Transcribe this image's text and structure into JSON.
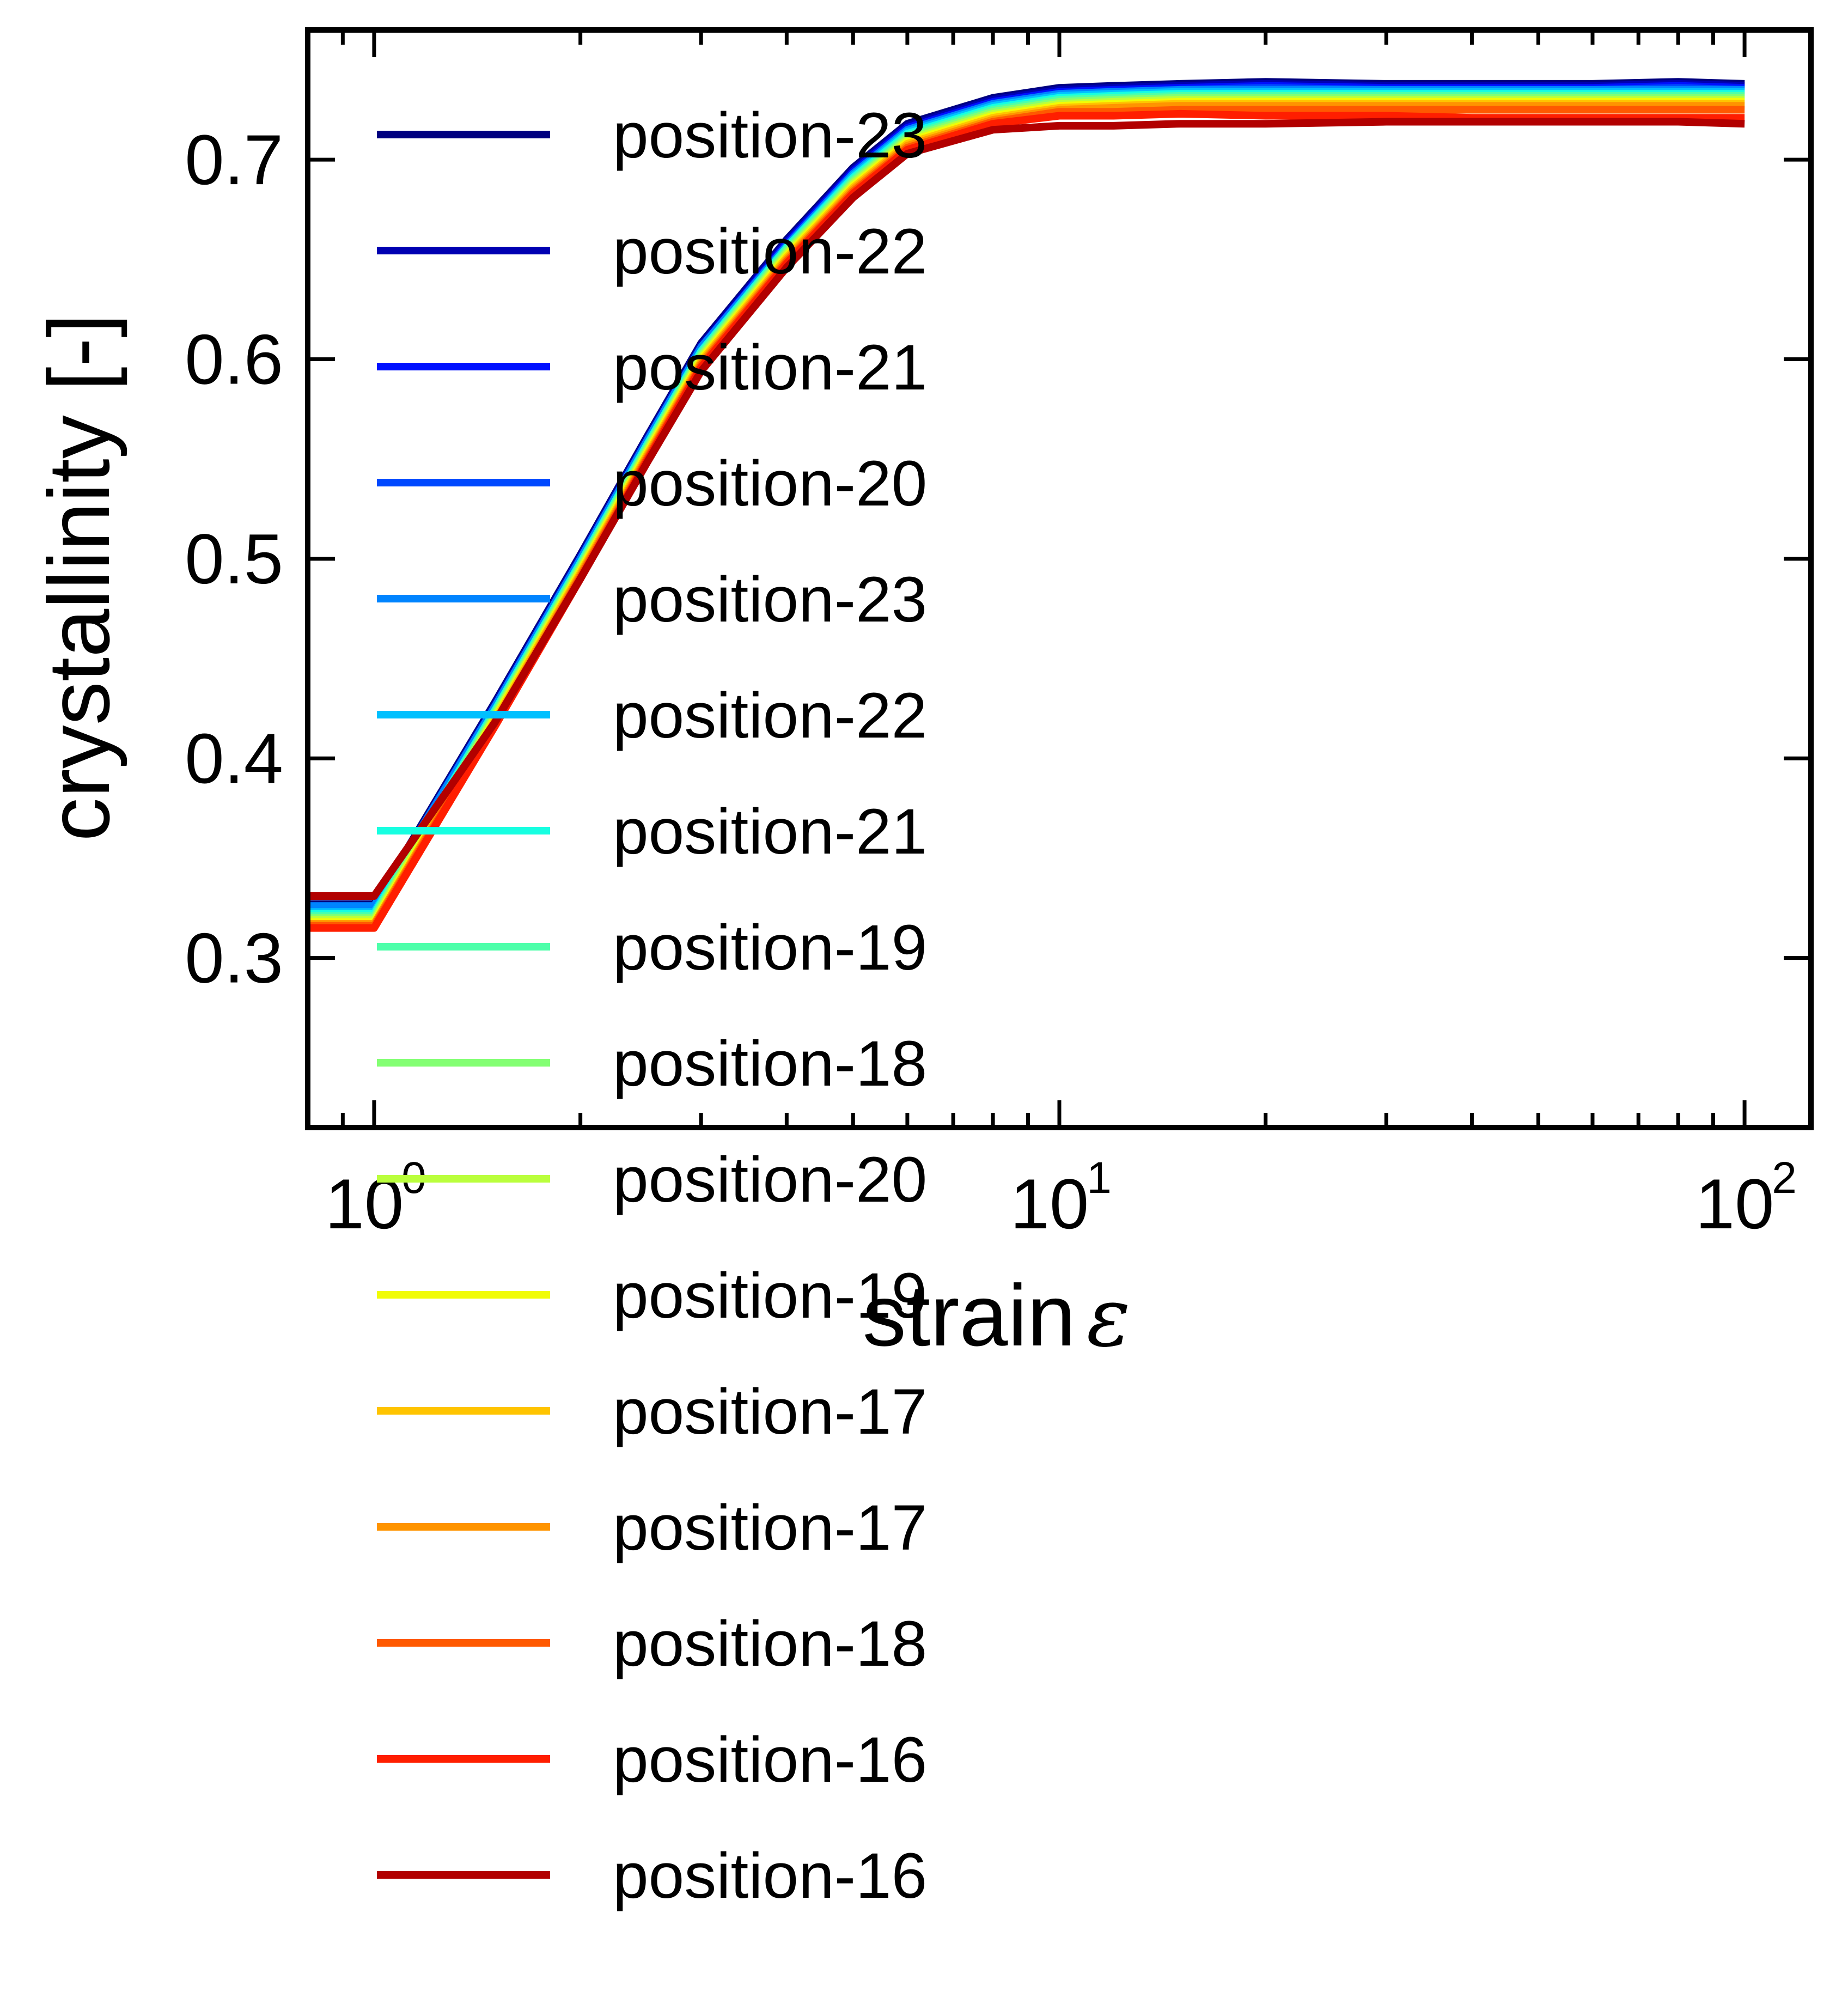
{
  "chart_data": {
    "type": "line",
    "xlabel": "strain",
    "xlabel_symbol": "ε",
    "ylabel": "crystallinity [-]",
    "xscale": "log",
    "xlim": [
      0.8,
      125
    ],
    "ylim": [
      0.215,
      0.765
    ],
    "x_ticks": [
      {
        "value": 1,
        "base": "10",
        "exp": "0"
      },
      {
        "value": 10,
        "base": "10",
        "exp": "1"
      },
      {
        "value": 100,
        "base": "10",
        "exp": "2"
      }
    ],
    "y_ticks": [
      {
        "value": 0.3,
        "label": "0.3"
      },
      {
        "value": 0.4,
        "label": "0.4"
      },
      {
        "value": 0.5,
        "label": "0.5"
      },
      {
        "value": 0.6,
        "label": "0.6"
      },
      {
        "value": 0.7,
        "label": "0.7"
      }
    ],
    "grid": false,
    "legend_position": "upper-left, extending below plot",
    "x": [
      0.8,
      1,
      1.5,
      2,
      2.5,
      3,
      4,
      5,
      6,
      8,
      10,
      12,
      15,
      20,
      30,
      40,
      60,
      80,
      100
    ],
    "series": [
      {
        "name": "position-23",
        "color": "#00007f",
        "values": [
          0.327,
          0.327,
          0.428,
          0.502,
          0.561,
          0.608,
          0.66,
          0.696,
          0.718,
          0.731,
          0.736,
          0.737,
          0.738,
          0.739,
          0.738,
          0.738,
          0.738,
          0.739,
          0.738
        ]
      },
      {
        "name": "position-22",
        "color": "#0000b2",
        "values": [
          0.326,
          0.326,
          0.427,
          0.501,
          0.56,
          0.607,
          0.659,
          0.695,
          0.717,
          0.73,
          0.735,
          0.736,
          0.737,
          0.738,
          0.737,
          0.737,
          0.737,
          0.738,
          0.737
        ]
      },
      {
        "name": "position-21",
        "color": "#0010ff",
        "values": [
          0.325,
          0.325,
          0.426,
          0.5,
          0.559,
          0.606,
          0.658,
          0.694,
          0.716,
          0.729,
          0.734,
          0.735,
          0.736,
          0.737,
          0.736,
          0.736,
          0.736,
          0.737,
          0.736
        ]
      },
      {
        "name": "position-20",
        "color": "#0048ff",
        "values": [
          0.324,
          0.324,
          0.425,
          0.499,
          0.558,
          0.605,
          0.657,
          0.693,
          0.715,
          0.728,
          0.733,
          0.734,
          0.735,
          0.736,
          0.735,
          0.735,
          0.735,
          0.736,
          0.735
        ]
      },
      {
        "name": "position-23",
        "color": "#0084ff",
        "values": [
          0.326,
          0.326,
          0.426,
          0.5,
          0.559,
          0.606,
          0.657,
          0.693,
          0.715,
          0.728,
          0.733,
          0.734,
          0.735,
          0.735,
          0.735,
          0.735,
          0.735,
          0.735,
          0.735
        ]
      },
      {
        "name": "position-22",
        "color": "#00c0ff",
        "values": [
          0.323,
          0.323,
          0.424,
          0.498,
          0.557,
          0.604,
          0.656,
          0.692,
          0.714,
          0.727,
          0.732,
          0.733,
          0.734,
          0.734,
          0.734,
          0.734,
          0.734,
          0.734,
          0.734
        ]
      },
      {
        "name": "position-21",
        "color": "#16ffe1",
        "values": [
          0.322,
          0.322,
          0.424,
          0.498,
          0.557,
          0.604,
          0.656,
          0.691,
          0.713,
          0.726,
          0.731,
          0.732,
          0.733,
          0.733,
          0.733,
          0.733,
          0.733,
          0.733,
          0.733
        ]
      },
      {
        "name": "position-19",
        "color": "#4dffaa",
        "values": [
          0.321,
          0.321,
          0.423,
          0.497,
          0.556,
          0.603,
          0.655,
          0.69,
          0.712,
          0.725,
          0.73,
          0.731,
          0.732,
          0.732,
          0.732,
          0.732,
          0.732,
          0.732,
          0.732
        ]
      },
      {
        "name": "position-18",
        "color": "#83ff73",
        "values": [
          0.32,
          0.32,
          0.422,
          0.496,
          0.555,
          0.602,
          0.654,
          0.689,
          0.711,
          0.724,
          0.729,
          0.73,
          0.731,
          0.731,
          0.731,
          0.731,
          0.731,
          0.731,
          0.731
        ]
      },
      {
        "name": "position-20",
        "color": "#baff3c",
        "values": [
          0.319,
          0.319,
          0.421,
          0.495,
          0.554,
          0.601,
          0.653,
          0.688,
          0.71,
          0.723,
          0.728,
          0.729,
          0.73,
          0.73,
          0.73,
          0.73,
          0.73,
          0.73,
          0.73
        ]
      },
      {
        "name": "position-19",
        "color": "#f1fc06",
        "values": [
          0.318,
          0.318,
          0.42,
          0.494,
          0.553,
          0.6,
          0.652,
          0.687,
          0.709,
          0.722,
          0.727,
          0.728,
          0.729,
          0.729,
          0.729,
          0.729,
          0.729,
          0.729,
          0.729
        ]
      },
      {
        "name": "position-17",
        "color": "#ffc400",
        "values": [
          0.317,
          0.317,
          0.419,
          0.493,
          0.552,
          0.599,
          0.651,
          0.686,
          0.708,
          0.721,
          0.726,
          0.727,
          0.728,
          0.728,
          0.728,
          0.728,
          0.728,
          0.728,
          0.728
        ]
      },
      {
        "name": "position-17",
        "color": "#ff9400",
        "values": [
          0.317,
          0.317,
          0.418,
          0.492,
          0.551,
          0.598,
          0.65,
          0.685,
          0.707,
          0.72,
          0.725,
          0.726,
          0.727,
          0.727,
          0.727,
          0.727,
          0.727,
          0.727,
          0.727
        ]
      },
      {
        "name": "position-18",
        "color": "#ff5900",
        "values": [
          0.316,
          0.316,
          0.417,
          0.491,
          0.55,
          0.597,
          0.649,
          0.684,
          0.706,
          0.719,
          0.724,
          0.724,
          0.725,
          0.725,
          0.725,
          0.725,
          0.725,
          0.725,
          0.725
        ]
      },
      {
        "name": "position-16",
        "color": "#ff1e00",
        "values": [
          0.315,
          0.315,
          0.416,
          0.49,
          0.549,
          0.596,
          0.648,
          0.683,
          0.705,
          0.718,
          0.722,
          0.722,
          0.723,
          0.722,
          0.722,
          0.721,
          0.721,
          0.721,
          0.721
        ]
      },
      {
        "name": "position-16",
        "color": "#b20000",
        "values": [
          0.331,
          0.331,
          0.418,
          0.49,
          0.548,
          0.594,
          0.646,
          0.681,
          0.703,
          0.715,
          0.717,
          0.717,
          0.718,
          0.718,
          0.719,
          0.719,
          0.719,
          0.719,
          0.718
        ]
      }
    ]
  }
}
